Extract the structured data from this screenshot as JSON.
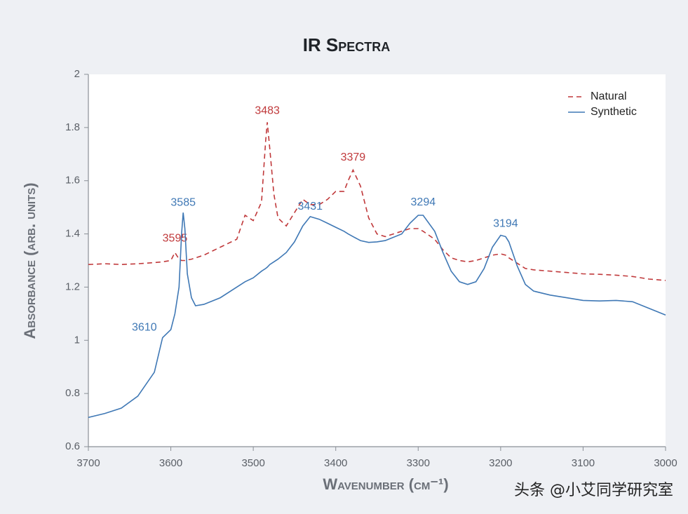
{
  "chart_data": {
    "type": "line",
    "title": "IR Spectra",
    "xlabel": "Wavenumber (cm⁻¹)",
    "ylabel": "Absorbance (arb. units)",
    "x": [
      3700,
      3680,
      3660,
      3640,
      3620,
      3610,
      3600,
      3595,
      3590,
      3587,
      3585,
      3583,
      3580,
      3575,
      3570,
      3560,
      3540,
      3520,
      3510,
      3500,
      3490,
      3485,
      3483,
      3480,
      3475,
      3470,
      3460,
      3450,
      3440,
      3431,
      3420,
      3410,
      3400,
      3390,
      3385,
      3379,
      3370,
      3360,
      3350,
      3340,
      3320,
      3310,
      3300,
      3294,
      3280,
      3270,
      3260,
      3250,
      3240,
      3230,
      3220,
      3210,
      3200,
      3194,
      3190,
      3180,
      3170,
      3160,
      3140,
      3120,
      3100,
      3080,
      3060,
      3040,
      3020,
      3000
    ],
    "series": [
      {
        "name": "Natural",
        "color": "#c0393b",
        "dashed": true,
        "peaks": [
          3595,
          3483,
          3379
        ],
        "values": [
          1.285,
          1.288,
          1.285,
          1.288,
          1.292,
          1.295,
          1.3,
          1.33,
          1.305,
          1.3,
          1.3,
          1.3,
          1.302,
          1.305,
          1.31,
          1.32,
          1.35,
          1.38,
          1.47,
          1.45,
          1.52,
          1.75,
          1.82,
          1.72,
          1.55,
          1.46,
          1.43,
          1.48,
          1.53,
          1.51,
          1.51,
          1.53,
          1.56,
          1.56,
          1.6,
          1.64,
          1.58,
          1.46,
          1.4,
          1.39,
          1.41,
          1.42,
          1.42,
          1.41,
          1.38,
          1.34,
          1.31,
          1.3,
          1.295,
          1.3,
          1.31,
          1.32,
          1.325,
          1.32,
          1.31,
          1.29,
          1.27,
          1.265,
          1.26,
          1.255,
          1.25,
          1.248,
          1.245,
          1.24,
          1.23,
          1.225
        ]
      },
      {
        "name": "Synthetic",
        "color": "#3f78b5",
        "dashed": false,
        "peaks": [
          3610,
          3585,
          3431,
          3294,
          3194
        ],
        "values": [
          0.71,
          0.725,
          0.745,
          0.79,
          0.88,
          1.01,
          1.04,
          1.1,
          1.2,
          1.4,
          1.48,
          1.42,
          1.25,
          1.16,
          1.13,
          1.135,
          1.16,
          1.2,
          1.22,
          1.235,
          1.26,
          1.27,
          1.275,
          1.285,
          1.295,
          1.305,
          1.33,
          1.37,
          1.43,
          1.465,
          1.455,
          1.44,
          1.425,
          1.41,
          1.4,
          1.39,
          1.375,
          1.368,
          1.37,
          1.375,
          1.4,
          1.44,
          1.47,
          1.47,
          1.41,
          1.33,
          1.26,
          1.22,
          1.21,
          1.22,
          1.27,
          1.35,
          1.395,
          1.39,
          1.37,
          1.28,
          1.21,
          1.185,
          1.17,
          1.16,
          1.15,
          1.148,
          1.15,
          1.145,
          1.12,
          1.095
        ]
      }
    ],
    "xlim": [
      3700,
      3000
    ],
    "xticks": [
      3700,
      3600,
      3500,
      3400,
      3300,
      3200,
      3100,
      3000
    ],
    "ylim": [
      0.6,
      2
    ],
    "yticks": [
      0.6,
      0.8,
      1,
      1.2,
      1.4,
      1.6,
      1.8,
      2
    ],
    "legend": "upper right",
    "watermark": "头条 @小艾同学研究室"
  }
}
